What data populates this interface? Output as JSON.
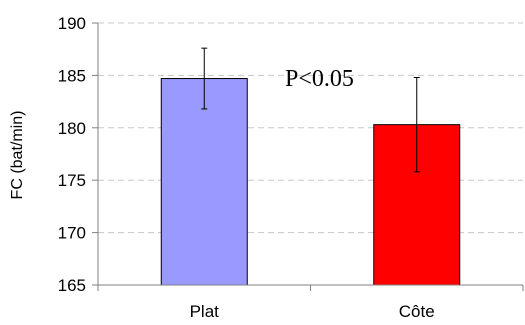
{
  "chart_data": {
    "type": "bar",
    "categories": [
      "Plat",
      "Côte"
    ],
    "values": [
      184.7,
      180.3
    ],
    "errors": [
      2.9,
      4.5
    ],
    "colors": [
      "#9999ff",
      "#ff0000"
    ],
    "xlabel": "",
    "ylabel": "FC (bat/min)",
    "ylim": [
      165,
      190
    ],
    "yticks": [
      165,
      170,
      175,
      180,
      185,
      190
    ],
    "grid": true,
    "annotation": "P<0.05"
  }
}
